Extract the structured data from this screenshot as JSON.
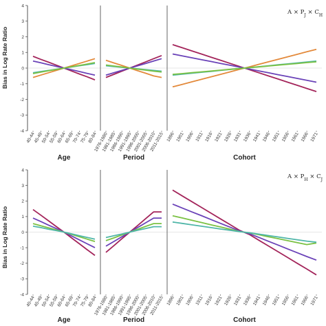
{
  "colors": {
    "purple_red": "#a3245a",
    "purple": "#6a42b8",
    "orange": "#e3893a",
    "green": "#7ac142",
    "teal": "#4fb6a8",
    "axis": "#555555"
  },
  "chart_data": [
    {
      "type": "line",
      "ylabel": "Bias in Log Rate Ratio",
      "ylim": [
        -4,
        4
      ],
      "yticks": [
        "4",
        "3",
        "2",
        "1",
        "0",
        "-1",
        "-2",
        "-3",
        "-4"
      ],
      "annotation": "A × P_J × C_H",
      "annotation_display": "A × P",
      "annotation_sub1": "J",
      "annotation_mid": " × C",
      "annotation_sub2": "H",
      "panels": [
        {
          "xlabel": "Age",
          "categories": [
            "40-44",
            "45-49",
            "50-54",
            "55-59",
            "60-64",
            "65-69",
            "70-74",
            "75-79",
            "80-84"
          ],
          "series": [
            {
              "color": "#a3245a",
              "values": [
                0.75,
                0.56,
                0.38,
                0.19,
                0.0,
                -0.19,
                -0.38,
                -0.56,
                -0.75
              ]
            },
            {
              "color": "#6a42b8",
              "values": [
                0.45,
                0.34,
                0.22,
                0.11,
                0.0,
                -0.11,
                -0.22,
                -0.34,
                -0.45
              ]
            },
            {
              "color": "#e3893a",
              "values": [
                -0.6,
                -0.45,
                -0.3,
                -0.15,
                0.0,
                0.15,
                0.3,
                0.45,
                0.6
              ]
            },
            {
              "color": "#4fb6a8",
              "values": [
                -0.3,
                -0.22,
                -0.15,
                -0.08,
                0.0,
                0.08,
                0.15,
                0.22,
                0.3
              ]
            },
            {
              "color": "#7ac142",
              "values": [
                -0.35,
                -0.26,
                -0.17,
                -0.09,
                0.0,
                0.09,
                0.17,
                0.26,
                0.35
              ]
            }
          ]
        },
        {
          "xlabel": "Period",
          "categories": [
            "1976-1980",
            "1981-1985",
            "1986-1990",
            "1991-1995",
            "1996-2000",
            "2001-2005",
            "2006-2010",
            "2011-2015"
          ],
          "series": [
            {
              "color": "#a3245a",
              "values": [
                -0.6,
                -0.4,
                -0.2,
                0.0,
                0.2,
                0.4,
                0.6,
                0.8
              ]
            },
            {
              "color": "#6a42b8",
              "values": [
                -0.45,
                -0.3,
                -0.15,
                0.0,
                0.15,
                0.3,
                0.45,
                0.6
              ]
            },
            {
              "color": "#e3893a",
              "values": [
                0.5,
                0.33,
                0.17,
                0.0,
                -0.17,
                -0.33,
                -0.5,
                -0.6
              ]
            },
            {
              "color": "#4fb6a8",
              "values": [
                0.15,
                0.1,
                0.05,
                0.0,
                -0.05,
                -0.1,
                -0.15,
                -0.2
              ]
            },
            {
              "color": "#7ac142",
              "values": [
                0.2,
                0.13,
                0.07,
                0.0,
                -0.07,
                -0.13,
                -0.2,
                -0.25
              ]
            }
          ]
        },
        {
          "xlabel": "Cohort",
          "categories": [
            "1896",
            "1901",
            "1906",
            "1911",
            "1916",
            "1921",
            "1926",
            "1931",
            "1936",
            "1941",
            "1946",
            "1951",
            "1956",
            "1961",
            "1966",
            "1971"
          ],
          "series": [
            {
              "color": "#a3245a",
              "values": [
                1.5,
                1.3,
                1.1,
                0.9,
                0.7,
                0.5,
                0.3,
                0.1,
                -0.1,
                -0.3,
                -0.5,
                -0.7,
                -0.9,
                -1.1,
                -1.3,
                -1.5
              ]
            },
            {
              "color": "#6a42b8",
              "values": [
                0.9,
                0.78,
                0.66,
                0.54,
                0.42,
                0.3,
                0.18,
                0.06,
                -0.06,
                -0.18,
                -0.3,
                -0.42,
                -0.54,
                -0.66,
                -0.78,
                -0.9
              ]
            },
            {
              "color": "#e3893a",
              "values": [
                -1.2,
                -1.04,
                -0.88,
                -0.72,
                -0.56,
                -0.4,
                -0.24,
                -0.08,
                0.08,
                0.24,
                0.4,
                0.56,
                0.72,
                0.88,
                1.04,
                1.2
              ]
            },
            {
              "color": "#4fb6a8",
              "values": [
                -0.45,
                -0.39,
                -0.33,
                -0.27,
                -0.21,
                -0.15,
                -0.09,
                -0.03,
                0.03,
                0.09,
                0.15,
                0.21,
                0.27,
                0.33,
                0.39,
                0.45
              ]
            },
            {
              "color": "#7ac142",
              "values": [
                -0.4,
                -0.35,
                -0.29,
                -0.24,
                -0.19,
                -0.13,
                -0.08,
                -0.03,
                0.03,
                0.08,
                0.13,
                0.19,
                0.24,
                0.29,
                0.35,
                0.4
              ]
            }
          ]
        }
      ]
    },
    {
      "type": "line",
      "ylabel": "Bias in Log Rate Ratio",
      "ylim": [
        -4,
        4
      ],
      "yticks": [
        "4",
        "3",
        "2",
        "1",
        "0",
        "-1",
        "-2",
        "-3",
        "-4"
      ],
      "annotation": "A × P_H × C_J",
      "annotation_display": "A × P",
      "annotation_sub1": "H",
      "annotation_mid": " × C",
      "annotation_sub2": "J",
      "panels": [
        {
          "xlabel": "Age",
          "categories": [
            "40-44",
            "45-49",
            "50-54",
            "55-59",
            "60-64",
            "65-69",
            "70-74",
            "75-79",
            "80-84"
          ],
          "series": [
            {
              "color": "#a3245a",
              "values": [
                1.45,
                1.09,
                0.73,
                0.36,
                0.0,
                -0.38,
                -0.75,
                -1.13,
                -1.5
              ]
            },
            {
              "color": "#6a42b8",
              "values": [
                0.9,
                0.68,
                0.45,
                0.23,
                0.0,
                -0.25,
                -0.5,
                -0.75,
                -1.0
              ]
            },
            {
              "color": "#7ac142",
              "values": [
                0.55,
                0.41,
                0.28,
                0.14,
                0.0,
                -0.15,
                -0.3,
                -0.45,
                -0.6
              ]
            },
            {
              "color": "#4fb6a8",
              "values": [
                0.38,
                0.29,
                0.19,
                0.1,
                0.0,
                -0.11,
                -0.23,
                -0.34,
                -0.45
              ]
            }
          ]
        },
        {
          "xlabel": "Period",
          "categories": [
            "1976-1980",
            "1981-1985",
            "1986-1990",
            "1991-1995",
            "1996-2000",
            "2001-2005",
            "2006-2010",
            "2011-2015"
          ],
          "series": [
            {
              "color": "#a3245a",
              "values": [
                -1.3,
                -0.87,
                -0.43,
                0.0,
                0.43,
                0.87,
                1.3,
                1.3
              ]
            },
            {
              "color": "#6a42b8",
              "values": [
                -0.9,
                -0.6,
                -0.3,
                0.0,
                0.3,
                0.6,
                0.9,
                0.9
              ]
            },
            {
              "color": "#7ac142",
              "values": [
                -0.55,
                -0.37,
                -0.18,
                0.0,
                0.18,
                0.37,
                0.55,
                0.55
              ]
            },
            {
              "color": "#4fb6a8",
              "values": [
                -0.35,
                -0.23,
                -0.12,
                0.0,
                0.12,
                0.23,
                0.35,
                0.35
              ]
            }
          ]
        },
        {
          "xlabel": "Cohort",
          "categories": [
            "1896",
            "1901",
            "1906",
            "1911",
            "1916",
            "1921",
            "1926",
            "1931",
            "1936",
            "1941",
            "1946",
            "1951",
            "1956",
            "1961",
            "1966",
            "1971"
          ],
          "series": [
            {
              "color": "#a3245a",
              "values": [
                2.7,
                2.33,
                1.96,
                1.59,
                1.22,
                0.85,
                0.48,
                0.11,
                -0.15,
                -0.52,
                -0.89,
                -1.26,
                -1.63,
                -2.0,
                -2.37,
                -2.75
              ]
            },
            {
              "color": "#6a42b8",
              "values": [
                1.8,
                1.55,
                1.3,
                1.06,
                0.81,
                0.56,
                0.32,
                0.07,
                -0.1,
                -0.34,
                -0.59,
                -0.83,
                -1.08,
                -1.32,
                -1.57,
                -1.8
              ]
            },
            {
              "color": "#7ac142",
              "values": [
                1.05,
                0.91,
                0.76,
                0.62,
                0.47,
                0.33,
                0.19,
                0.04,
                -0.05,
                -0.17,
                -0.3,
                -0.42,
                -0.55,
                -0.67,
                -0.8,
                -0.7
              ]
            },
            {
              "color": "#4fb6a8",
              "values": [
                0.65,
                0.56,
                0.47,
                0.38,
                0.29,
                0.2,
                0.12,
                0.03,
                -0.04,
                -0.13,
                -0.22,
                -0.31,
                -0.4,
                -0.49,
                -0.58,
                -0.65
              ]
            }
          ]
        }
      ]
    }
  ]
}
